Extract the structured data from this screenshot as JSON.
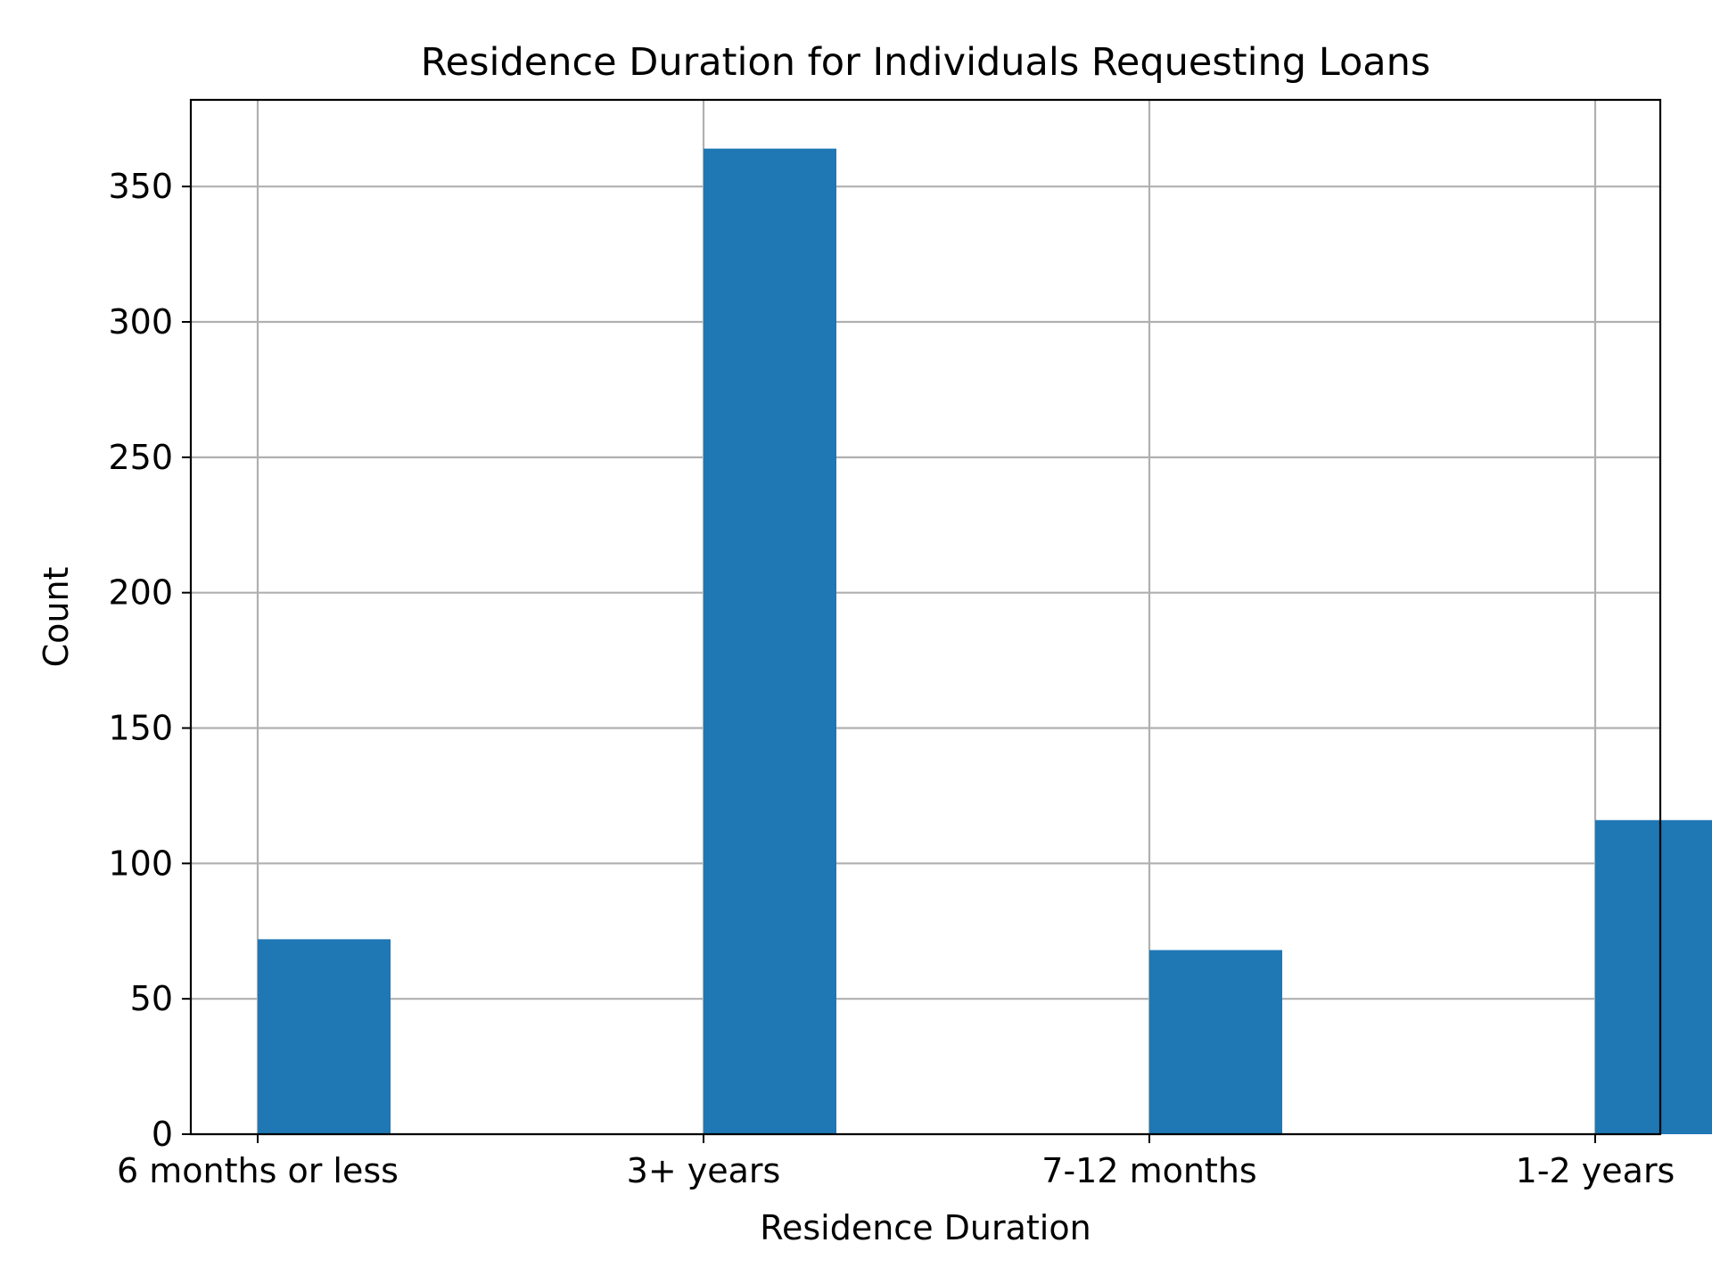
{
  "chart_data": {
    "type": "bar",
    "title": "Residence Duration for Individuals Requesting Loans",
    "xlabel": "Residence Duration",
    "ylabel": "Count",
    "categories": [
      "6 months or less",
      "3+ years",
      "7-12 months",
      "1-2 years"
    ],
    "values": [
      72,
      364,
      68,
      116
    ],
    "ylim": [
      0,
      382
    ],
    "yticks": [
      "0",
      "50",
      "100",
      "150",
      "200",
      "250",
      "300",
      "350"
    ],
    "grid": true,
    "bar_color": "#1f77b4",
    "grid_color": "#b0b0b0"
  }
}
